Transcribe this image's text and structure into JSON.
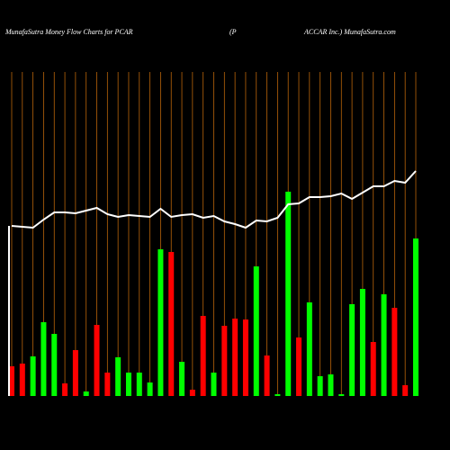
{
  "chart_data": {
    "type": "bar",
    "title_left": "MunafaSutra  Money Flow  Charts for PCAR",
    "title_middle": "(P",
    "title_right": "ACCAR Inc.) MunafaSutra.com",
    "values": [
      33,
      36,
      44,
      82,
      69,
      14,
      51,
      5,
      79,
      26,
      43,
      26,
      26,
      15,
      163,
      160,
      38,
      7,
      89,
      26,
      78,
      86,
      85,
      144,
      45,
      2,
      227,
      65,
      104,
      22,
      24,
      2,
      102,
      119,
      60,
      113,
      98,
      12,
      175
    ],
    "colors": [
      "#ff0000",
      "#ff0000",
      "#00ff00",
      "#00ff00",
      "#00ff00",
      "#ff0000",
      "#ff0000",
      "#00ff00",
      "#ff0000",
      "#ff0000",
      "#00ff00",
      "#00ff00",
      "#00ff00",
      "#00ff00",
      "#00ff00",
      "#ff0000",
      "#00ff00",
      "#ff0000",
      "#ff0000",
      "#00ff00",
      "#ff0000",
      "#ff0000",
      "#ff0000",
      "#00ff00",
      "#ff0000",
      "#00ff00",
      "#00ff00",
      "#ff0000",
      "#00ff00",
      "#00ff00",
      "#00ff00",
      "#00ff00",
      "#00ff00",
      "#00ff00",
      "#ff0000",
      "#00ff00",
      "#ff0000",
      "#ff0000",
      "#00ff00"
    ],
    "line_values": [
      189,
      188,
      187,
      196,
      204,
      204,
      203,
      206,
      209,
      202,
      199,
      201,
      200,
      199,
      208,
      199,
      201,
      202,
      198,
      200,
      194,
      191,
      187,
      195,
      194,
      198,
      213,
      214,
      221,
      221,
      222,
      225,
      219,
      226,
      233,
      233,
      239,
      237,
      250
    ],
    "line_color": "#ffffff",
    "grid_color": "#b8640a",
    "ylim": [
      0,
      360
    ]
  }
}
